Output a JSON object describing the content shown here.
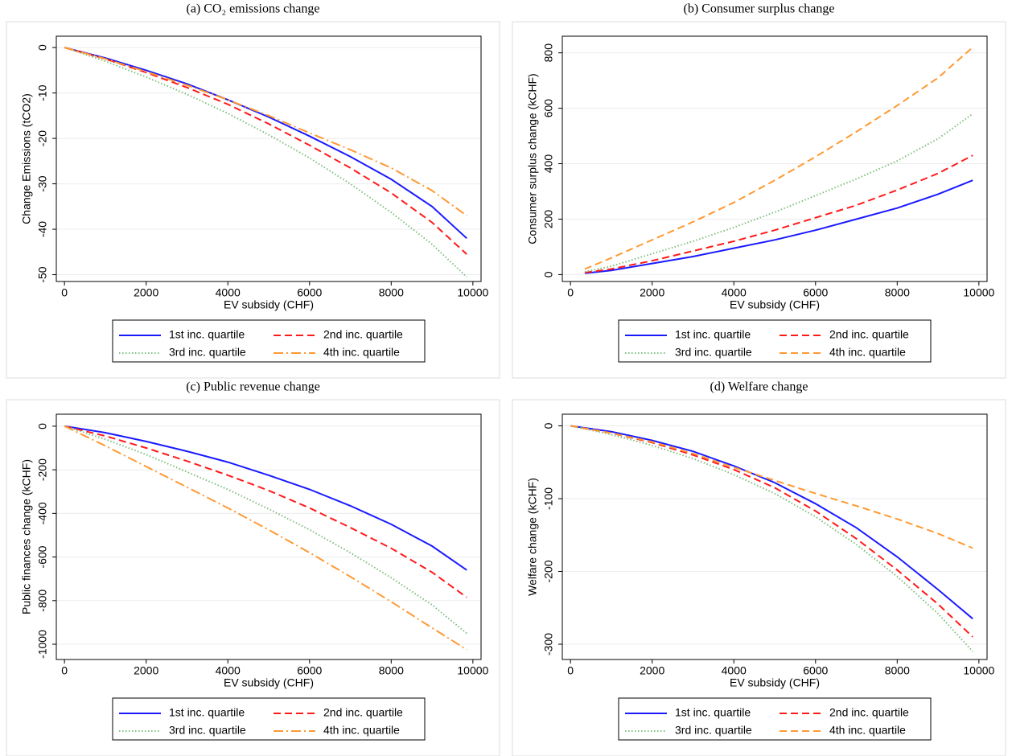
{
  "chart_data": [
    {
      "type": "line",
      "title": "(a) CO₂ emissions change",
      "x_label": "EV subsidy (CHF)",
      "y_label": "Change Emissions (tCO2)",
      "x": [
        0,
        1000,
        2000,
        3000,
        4000,
        5000,
        6000,
        7000,
        8000,
        9000,
        9850
      ],
      "xlim": [
        -200,
        10200
      ],
      "xticks": [
        0,
        2000,
        4000,
        6000,
        8000,
        10000
      ],
      "ylim": [
        -51.5,
        2.5
      ],
      "yticks": [
        0,
        -10,
        -20,
        -30,
        -40,
        -50
      ],
      "grid": true,
      "series": [
        {
          "name": "1st inc. quartile",
          "color": "#1a1aff",
          "dash": "solid",
          "values": [
            0,
            -2.3,
            -5,
            -8,
            -11.5,
            -15.3,
            -19.5,
            -24,
            -29,
            -35,
            -42
          ]
        },
        {
          "name": "2nd inc. quartile",
          "color": "#ff1a1a",
          "dash": "dash",
          "values": [
            0,
            -2.5,
            -5.5,
            -8.8,
            -12.5,
            -16.8,
            -21.5,
            -26.5,
            -32,
            -38.5,
            -45.5
          ]
        },
        {
          "name": "3rd inc. quartile",
          "color": "#7fbf7f",
          "dash": "dot",
          "values": [
            0,
            -3,
            -6.5,
            -10.3,
            -14.5,
            -19.2,
            -24.3,
            -30,
            -36.3,
            -43.3,
            -50.5
          ]
        },
        {
          "name": "4th inc. quartile",
          "color": "#ff9933",
          "dash": "longdash-dot",
          "values": [
            0,
            -2.5,
            -5.3,
            -8.3,
            -11.5,
            -15,
            -18.8,
            -22.5,
            -26.5,
            -31.5,
            -37
          ]
        }
      ]
    },
    {
      "type": "line",
      "title": "(b) Consumer surplus change",
      "x_label": "EV subsidy (CHF)",
      "y_label": "Consumer surplus change (kCHF)",
      "x": [
        350,
        1000,
        2000,
        3000,
        4000,
        5000,
        6000,
        7000,
        8000,
        9000,
        9850
      ],
      "xlim": [
        -200,
        10200
      ],
      "xticks": [
        0,
        2000,
        4000,
        6000,
        8000,
        10000
      ],
      "ylim": [
        -25,
        860
      ],
      "yticks": [
        0,
        200,
        400,
        600,
        800
      ],
      "grid": true,
      "series": [
        {
          "name": "1st inc. quartile",
          "color": "#1a1aff",
          "dash": "solid",
          "values": [
            5,
            15,
            40,
            65,
            95,
            125,
            160,
            200,
            240,
            290,
            340
          ]
        },
        {
          "name": "2nd inc. quartile",
          "color": "#ff1a1a",
          "dash": "dash",
          "values": [
            7,
            20,
            50,
            85,
            120,
            160,
            205,
            250,
            305,
            365,
            430
          ]
        },
        {
          "name": "3rd inc. quartile",
          "color": "#7fbf7f",
          "dash": "dot",
          "values": [
            10,
            30,
            75,
            120,
            170,
            225,
            285,
            345,
            410,
            490,
            580
          ]
        },
        {
          "name": "4th inc. quartile",
          "color": "#ff9933",
          "dash": "dash",
          "values": [
            20,
            60,
            125,
            190,
            260,
            340,
            425,
            515,
            610,
            710,
            820
          ]
        }
      ]
    },
    {
      "type": "line",
      "title": "(c) Public revenue change",
      "x_label": "EV subsidy (CHF)",
      "y_label": "Public finances change (kCHF)",
      "x": [
        0,
        1000,
        2000,
        3000,
        4000,
        5000,
        6000,
        7000,
        8000,
        9000,
        9850
      ],
      "xlim": [
        -200,
        10200
      ],
      "xticks": [
        0,
        2000,
        4000,
        6000,
        8000,
        10000
      ],
      "ylim": [
        -1070,
        55
      ],
      "yticks": [
        0,
        -200,
        -400,
        -600,
        -800,
        -1000
      ],
      "grid": true,
      "series": [
        {
          "name": "1st inc. quartile",
          "color": "#1a1aff",
          "dash": "solid",
          "values": [
            0,
            -30,
            -70,
            -115,
            -165,
            -225,
            -290,
            -365,
            -450,
            -550,
            -660
          ]
        },
        {
          "name": "2nd inc. quartile",
          "color": "#ff1a1a",
          "dash": "dash",
          "values": [
            0,
            -45,
            -100,
            -160,
            -225,
            -295,
            -375,
            -465,
            -560,
            -670,
            -785
          ]
        },
        {
          "name": "3rd inc. quartile",
          "color": "#7fbf7f",
          "dash": "dot",
          "values": [
            0,
            -60,
            -130,
            -210,
            -290,
            -380,
            -475,
            -580,
            -695,
            -820,
            -950
          ]
        },
        {
          "name": "4th inc. quartile",
          "color": "#ff9933",
          "dash": "longdash-dot",
          "values": [
            0,
            -90,
            -185,
            -280,
            -375,
            -475,
            -580,
            -690,
            -805,
            -925,
            -1025
          ]
        }
      ]
    },
    {
      "type": "line",
      "title": "(d) Welfare change",
      "x_label": "EV subsidy (CHF)",
      "y_label": "Welfare change (kCHF)",
      "x": [
        0,
        1000,
        2000,
        3000,
        4000,
        5000,
        6000,
        7000,
        8000,
        9000,
        9850
      ],
      "xlim": [
        -200,
        10200
      ],
      "xticks": [
        0,
        2000,
        4000,
        6000,
        8000,
        10000
      ],
      "ylim": [
        -321,
        16
      ],
      "yticks": [
        0,
        -100,
        -200,
        -300
      ],
      "grid": true,
      "series": [
        {
          "name": "1st inc. quartile",
          "color": "#1a1aff",
          "dash": "solid",
          "values": [
            0,
            -8,
            -20,
            -35,
            -55,
            -78,
            -107,
            -140,
            -180,
            -225,
            -265
          ]
        },
        {
          "name": "2nd inc. quartile",
          "color": "#ff1a1a",
          "dash": "dash",
          "values": [
            0,
            -10,
            -23,
            -40,
            -60,
            -85,
            -117,
            -155,
            -198,
            -245,
            -290
          ]
        },
        {
          "name": "3rd inc. quartile",
          "color": "#7fbf7f",
          "dash": "dot",
          "values": [
            0,
            -12,
            -27,
            -45,
            -67,
            -93,
            -125,
            -163,
            -207,
            -258,
            -310
          ]
        },
        {
          "name": "4th inc. quartile",
          "color": "#ff9933",
          "dash": "dash",
          "values": [
            0,
            -10,
            -22,
            -38,
            -57,
            -75,
            -93,
            -110,
            -128,
            -148,
            -168
          ]
        }
      ]
    }
  ]
}
